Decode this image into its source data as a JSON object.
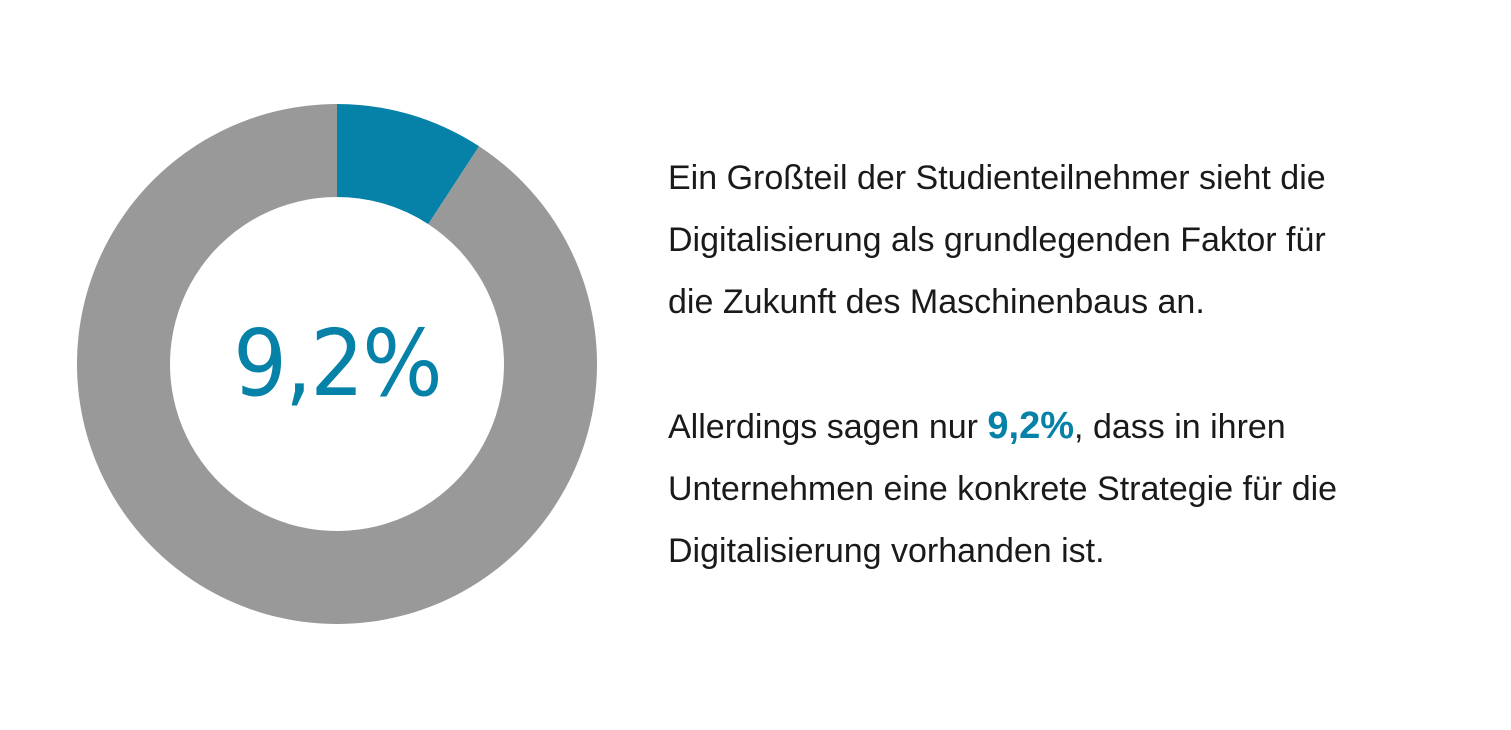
{
  "chart_data": {
    "type": "pie",
    "variant": "donut",
    "slices": [
      {
        "value": 9.2,
        "color": "#0681a8"
      },
      {
        "value": 90.8,
        "color": "#999999"
      }
    ],
    "center_label": "9,2%"
  },
  "text": {
    "paragraph1": [
      "Ein Großteil der Studienteilnehmer sieht die",
      "Digitalisierung als grundlegenden Faktor für",
      "die Zukunft des Maschinenbaus an."
    ],
    "paragraph2": {
      "line1_before": "Allerdings sagen nur ",
      "highlight": "9,2%",
      "line1_after": ", dass in ihren",
      "line2": "Unternehmen eine konkrete Strategie für die",
      "line3": "Digitalisierung vorhanden ist."
    }
  },
  "colors": {
    "accent": "#0681a8",
    "remainder": "#999999"
  }
}
